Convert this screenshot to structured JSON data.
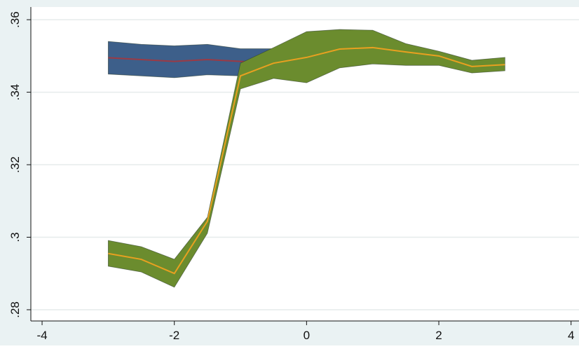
{
  "chart_data": {
    "type": "rangearea",
    "xlim": [
      -4.17,
      4.12
    ],
    "xticks": [
      -4,
      -2,
      0,
      2,
      4
    ],
    "ylim": [
      0.2769,
      0.3635
    ],
    "yticks": [
      {
        "value": 0.28,
        "label": ".28"
      },
      {
        "value": 0.3,
        "label": ".3"
      },
      {
        "value": 0.32,
        "label": ".32"
      },
      {
        "value": 0.34,
        "label": ".34"
      },
      {
        "value": 0.36,
        "label": ".36"
      }
    ],
    "grid": true,
    "series": [
      {
        "color": "#3d5f8a",
        "line_color": "#9b3a45",
        "x": [
          -3,
          -2.5,
          -2,
          -1.5,
          -1,
          -0.5
        ],
        "values": [
          0.3495,
          0.349,
          0.3485,
          0.349,
          0.3485,
          0.348
        ],
        "upper": [
          0.354,
          0.3532,
          0.3528,
          0.3532,
          0.352,
          0.352
        ],
        "lower": [
          0.345,
          0.3445,
          0.344,
          0.3448,
          0.3445,
          0.344
        ]
      },
      {
        "color": "#6b8c2e",
        "line_color": "#e8a020",
        "x": [
          -3,
          -2.5,
          -2,
          -1.5,
          -1,
          -0.5,
          0,
          0.5,
          1,
          1.5,
          2,
          2.5,
          3
        ],
        "values": [
          0.2955,
          0.2939,
          0.29,
          0.3044,
          0.3445,
          0.348,
          0.3496,
          0.3519,
          0.3523,
          0.3511,
          0.35,
          0.3471,
          0.3476
        ],
        "upper": [
          0.2991,
          0.2974,
          0.2939,
          0.3055,
          0.348,
          0.3523,
          0.3567,
          0.3573,
          0.3571,
          0.3534,
          0.3513,
          0.3488,
          0.3496
        ],
        "lower": [
          0.292,
          0.2904,
          0.2862,
          0.3011,
          0.3409,
          0.3438,
          0.3426,
          0.3467,
          0.3478,
          0.3474,
          0.3474,
          0.3453,
          0.3459
        ]
      }
    ]
  }
}
